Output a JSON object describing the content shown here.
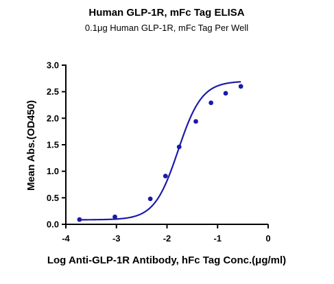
{
  "chart_data": {
    "type": "scatter",
    "title": "Human GLP-1R, mFc Tag ELISA",
    "subtitle": "0.1μg Human GLP-1R, mFc Tag Per Well",
    "xlabel": "Log Anti-GLP-1R Antibody, hFc Tag Conc.(μg/ml)",
    "ylabel": "Mean Abs.(OD450)",
    "xlim": [
      -4,
      0
    ],
    "ylim": [
      0,
      3.0
    ],
    "x_ticks": [
      "-4",
      "-3",
      "-2",
      "-1",
      "0"
    ],
    "y_ticks": [
      "0.0",
      "0.5",
      "1.0",
      "1.5",
      "2.0",
      "2.5",
      "3.0"
    ],
    "grid": false,
    "legend": "none",
    "color": "#1a1aa8",
    "series": [
      {
        "x": [
          -3.73,
          -3.03,
          -2.33,
          -2.03,
          -1.76,
          -1.43,
          -1.13,
          -0.84,
          -0.54
        ],
        "y": [
          0.09,
          0.14,
          0.48,
          0.91,
          1.46,
          1.94,
          2.29,
          2.47,
          2.6
        ],
        "fit": "4PL"
      }
    ]
  }
}
